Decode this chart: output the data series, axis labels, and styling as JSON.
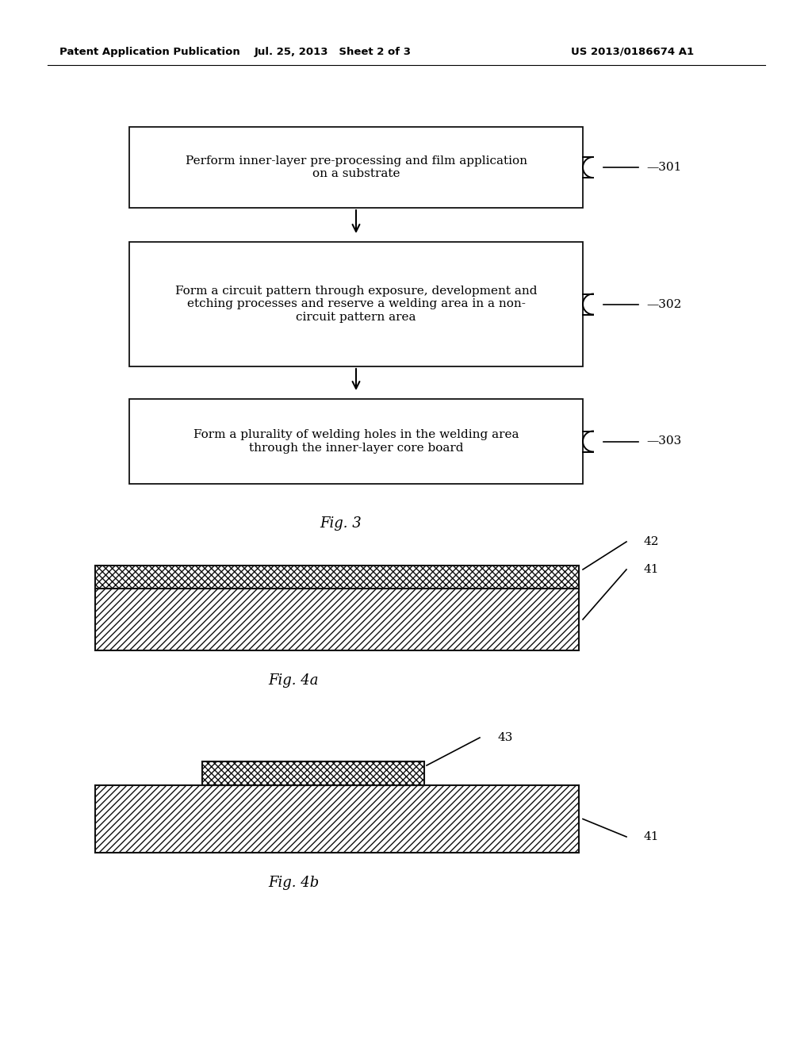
{
  "bg_color": "#ffffff",
  "header_left": "Patent Application Publication",
  "header_mid": "Jul. 25, 2013   Sheet 2 of 3",
  "header_right": "US 2013/0186674 A1",
  "box1_text": "Perform inner-layer pre-processing and film application\non a substrate",
  "box2_text": "Form a circuit pattern through exposure, development and\netching processes and reserve a welding area in a non-\ncircuit pattern area",
  "box3_text": "Form a plurality of welding holes in the welding area\nthrough the inner-layer core board",
  "label301": "—301",
  "label302": "—302",
  "label303": "—303",
  "fig3_caption": "Fig. 3",
  "fig4a_caption": "Fig. 4a",
  "fig4b_caption": "Fig. 4b",
  "label41a": "41",
  "label42": "42",
  "label41b": "41",
  "label43": "43"
}
